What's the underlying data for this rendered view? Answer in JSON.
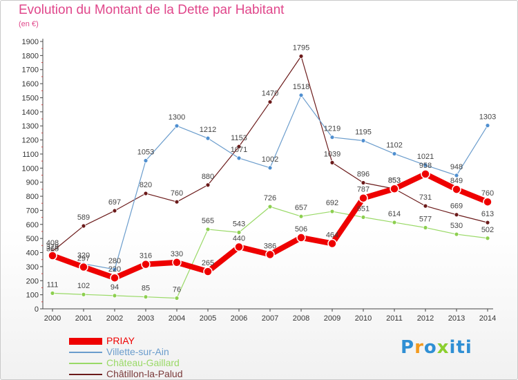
{
  "chart_data": {
    "type": "line",
    "title": "Evolution du Montant de la Dette par Habitant",
    "unit_label": "(en €)",
    "x": [
      "2000",
      "2001",
      "2002",
      "2003",
      "2004",
      "2005",
      "2006",
      "2007",
      "2008",
      "2009",
      "2010",
      "2011",
      "2012",
      "2013",
      "2014"
    ],
    "ylim": [
      0,
      1900
    ],
    "yticks": [
      0,
      100,
      200,
      300,
      400,
      500,
      600,
      700,
      800,
      900,
      1000,
      1100,
      1200,
      1300,
      1400,
      1500,
      1600,
      1700,
      1800,
      1900
    ],
    "grid": false,
    "legend_position": "bottom",
    "series": [
      {
        "name": "Châtillon-la-Palud",
        "color": "#6b1a1a",
        "dot": "#6b1a1a",
        "width": 1.2,
        "radius": 3,
        "values": [
          408,
          589,
          697,
          820,
          760,
          880,
          1153,
          1470,
          1795,
          1039,
          896,
          853,
          731,
          669,
          613
        ]
      },
      {
        "name": "Château-Gaillard",
        "color": "#99d966",
        "dot": "#8ccf4f",
        "width": 1.2,
        "radius": 3,
        "values": [
          111,
          102,
          94,
          85,
          76,
          565,
          543,
          726,
          657,
          692,
          651,
          614,
          577,
          530,
          502
        ]
      },
      {
        "name": "Villette-sur-Ain",
        "color": "#6a9ccc",
        "dot": "#4f8fd0",
        "width": 1.2,
        "radius": 3,
        "values": [
          365,
          320,
          280,
          1053,
          1300,
          1212,
          1071,
          1002,
          1518,
          1219,
          1195,
          1102,
          1021,
          948,
          1303
        ]
      },
      {
        "name": "PRIAY",
        "color": "#ee0000",
        "dot": "#ee0000",
        "width": 8,
        "radius": 6,
        "values": [
          378,
          297,
          220,
          316,
          330,
          265,
          440,
          386,
          506,
          464,
          787,
          853,
          958,
          849,
          760
        ]
      }
    ],
    "legend_order": [
      "PRIAY",
      "Villette-sur-Ain",
      "Château-Gaillard",
      "Châtillon-la-Palud"
    ]
  },
  "logo": {
    "text": "Proxiti",
    "colors": [
      "#2f8fd4",
      "#f39a1e",
      "#2f8fd4",
      "#8ccf2f",
      "#2f8fd4",
      "#2f8fd4",
      "#2f8fd4"
    ]
  }
}
